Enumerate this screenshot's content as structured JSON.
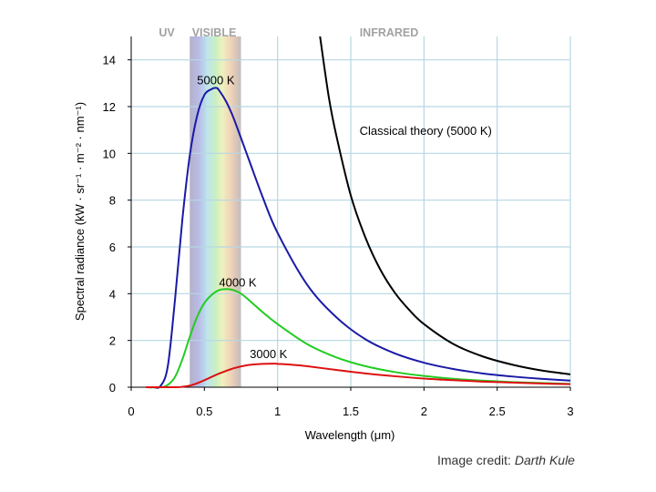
{
  "slide": {
    "credit_prefix": "Image credit: ",
    "credit_author": "Darth Kule"
  },
  "chart_data": {
    "type": "line",
    "title": "",
    "xlabel": "Wavelength (μm)",
    "ylabel": "Spectral radiance (kW · sr⁻¹ · m⁻² · nm⁻¹)",
    "xlim": [
      0,
      3
    ],
    "ylim": [
      0,
      15
    ],
    "xticks": [
      0,
      0.5,
      1,
      1.5,
      2,
      2.5,
      3
    ],
    "xtick_labels": [
      "0",
      "0.5",
      "1",
      "1.5",
      "2",
      "2.5",
      "3"
    ],
    "yticks": [
      0,
      2,
      4,
      6,
      8,
      10,
      12,
      14
    ],
    "ytick_labels": [
      "0",
      "2",
      "4",
      "6",
      "8",
      "10",
      "12",
      "14"
    ],
    "grid": true,
    "regions": [
      {
        "name": "UV",
        "label": "UV",
        "range": [
          0,
          0.4
        ]
      },
      {
        "name": "Visible",
        "label": "VISIBLE",
        "range": [
          0.4,
          0.75
        ]
      },
      {
        "name": "Infrared",
        "label": "INFRARED",
        "range": [
          0.75,
          3
        ]
      }
    ],
    "series": [
      {
        "name": "5000 K",
        "label": "5000 K",
        "color": "#1a1aa6",
        "x": [
          0.1,
          0.15,
          0.2,
          0.25,
          0.3,
          0.35,
          0.4,
          0.45,
          0.5,
          0.55,
          0.58,
          0.6,
          0.65,
          0.7,
          0.8,
          0.9,
          1.0,
          1.2,
          1.4,
          1.6,
          1.8,
          2.0,
          2.2,
          2.4,
          2.6,
          2.8,
          3.0
        ],
        "y": [
          0.0,
          0.0,
          0.05,
          0.9,
          3.8,
          7.2,
          9.9,
          11.6,
          12.5,
          12.75,
          12.8,
          12.7,
          12.2,
          11.5,
          9.8,
          8.1,
          6.6,
          4.4,
          3.0,
          2.05,
          1.45,
          1.05,
          0.78,
          0.59,
          0.46,
          0.36,
          0.28
        ]
      },
      {
        "name": "4000 K",
        "label": "4000 K",
        "color": "#22cc22",
        "x": [
          0.1,
          0.2,
          0.25,
          0.3,
          0.35,
          0.4,
          0.45,
          0.5,
          0.55,
          0.6,
          0.65,
          0.7,
          0.75,
          0.8,
          0.9,
          1.0,
          1.2,
          1.4,
          1.6,
          1.8,
          2.0,
          2.2,
          2.4,
          2.6,
          2.8,
          3.0
        ],
        "y": [
          0.0,
          0.0,
          0.1,
          0.45,
          1.2,
          2.15,
          3.0,
          3.6,
          3.95,
          4.15,
          4.2,
          4.15,
          4.0,
          3.75,
          3.2,
          2.7,
          1.85,
          1.28,
          0.9,
          0.65,
          0.48,
          0.36,
          0.28,
          0.22,
          0.18,
          0.14
        ]
      },
      {
        "name": "3000 K",
        "label": "3000 K",
        "color": "#dd1111",
        "x": [
          0.1,
          0.3,
          0.35,
          0.4,
          0.45,
          0.5,
          0.6,
          0.7,
          0.8,
          0.9,
          0.97,
          1.0,
          1.1,
          1.2,
          1.4,
          1.6,
          1.8,
          2.0,
          2.2,
          2.4,
          2.6,
          2.8,
          3.0
        ],
        "y": [
          0.0,
          0.0,
          0.02,
          0.07,
          0.17,
          0.3,
          0.58,
          0.81,
          0.95,
          1.0,
          1.01,
          1.0,
          0.96,
          0.9,
          0.74,
          0.59,
          0.47,
          0.37,
          0.3,
          0.24,
          0.2,
          0.16,
          0.13
        ]
      },
      {
        "name": "Classical theory (5000 K)",
        "label": "Classical theory (5000 K)",
        "color": "#000000",
        "x": [
          1.29,
          1.35,
          1.4,
          1.5,
          1.6,
          1.7,
          1.8,
          1.9,
          2.0,
          2.2,
          2.4,
          2.6,
          2.8,
          3.0
        ],
        "y": [
          15.0,
          12.4,
          10.8,
          8.2,
          6.4,
          5.05,
          4.05,
          3.3,
          2.7,
          1.85,
          1.32,
          0.97,
          0.72,
          0.55
        ]
      }
    ],
    "annotations": [
      {
        "text": "5000 K",
        "series": "5000 K",
        "x": 0.45,
        "y": 12.95
      },
      {
        "text": "4000 K",
        "series": "4000 K",
        "x": 0.6,
        "y": 4.3
      },
      {
        "text": "3000 K",
        "series": "3000 K",
        "x": 0.81,
        "y": 1.25
      },
      {
        "text": "Classical theory (5000 K)",
        "series": "Classical theory (5000 K)",
        "x": 1.56,
        "y": 10.8
      }
    ]
  }
}
